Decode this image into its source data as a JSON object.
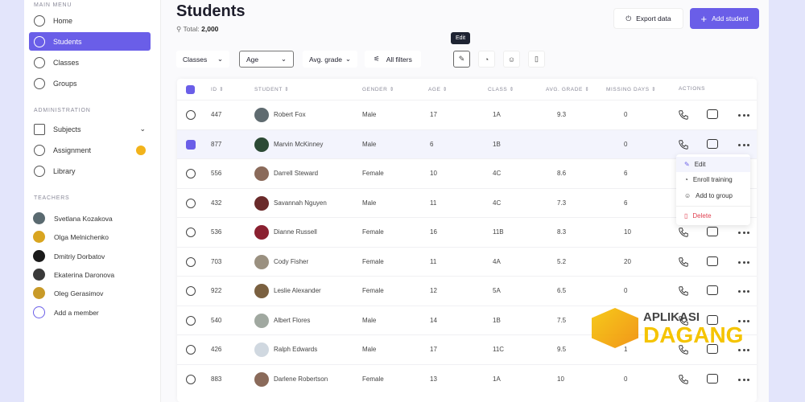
{
  "sidebar": {
    "sections": {
      "main": "MAIN MENU",
      "admin": "ADMINISTRATION",
      "teachers": "TEACHERS"
    },
    "main_items": [
      {
        "label": "Home",
        "icon": "home-icon"
      },
      {
        "label": "Students",
        "icon": "student-icon",
        "active": true
      },
      {
        "label": "Classes",
        "icon": "classes-icon"
      },
      {
        "label": "Groups",
        "icon": "groups-icon"
      }
    ],
    "admin_items": [
      {
        "label": "Subjects",
        "icon": "book-icon"
      },
      {
        "label": "Assignment",
        "icon": "assignment-icon"
      },
      {
        "label": "Library",
        "icon": "library-icon"
      }
    ],
    "teachers": [
      "Svetlana Kozakova",
      "Olga Melnichenko",
      "Dmitriy Dorbatov",
      "Ekaterina Daronova",
      "Oleg Gerasimov"
    ],
    "add_member": "Add a member"
  },
  "header": {
    "title": "Students",
    "total_label": "Total:",
    "total_value": "2,000",
    "export": "Export data",
    "add": "Add student"
  },
  "filters": {
    "classes": "Classes",
    "age": "Age",
    "avg_grade": "Avg. grade",
    "all_filters": "All filters",
    "tooltip": "Edit"
  },
  "table": {
    "headers": [
      "ID",
      "STUDENT",
      "GENDER",
      "AGE",
      "CLASS",
      "AVG. GRADE",
      "MISSING DAYS",
      "ACTIONS"
    ],
    "rows": [
      {
        "id": "447",
        "name": "Robert Fox",
        "gender": "Male",
        "age": "17",
        "class": "1A",
        "grade": "9.3",
        "missing": "0",
        "selected": false
      },
      {
        "id": "877",
        "name": "Marvin McKinney",
        "gender": "Male",
        "age": "6",
        "class": "1B",
        "grade": "",
        "missing": "0",
        "selected": true
      },
      {
        "id": "556",
        "name": "Darrell Steward",
        "gender": "Female",
        "age": "10",
        "class": "4C",
        "grade": "8.6",
        "missing": "6",
        "selected": false
      },
      {
        "id": "432",
        "name": "Savannah Nguyen",
        "gender": "Male",
        "age": "11",
        "class": "4C",
        "grade": "7.3",
        "missing": "6",
        "selected": false
      },
      {
        "id": "536",
        "name": "Dianne Russell",
        "gender": "Female",
        "age": "16",
        "class": "11B",
        "grade": "8.3",
        "missing": "10",
        "selected": false
      },
      {
        "id": "703",
        "name": "Cody Fisher",
        "gender": "Female",
        "age": "11",
        "class": "4A",
        "grade": "5.2",
        "missing": "20",
        "selected": false
      },
      {
        "id": "922",
        "name": "Leslie Alexander",
        "gender": "Female",
        "age": "12",
        "class": "5A",
        "grade": "6.5",
        "missing": "0",
        "selected": false
      },
      {
        "id": "540",
        "name": "Albert Flores",
        "gender": "Male",
        "age": "14",
        "class": "1B",
        "grade": "7.5",
        "missing": "",
        "selected": false
      },
      {
        "id": "426",
        "name": "Ralph Edwards",
        "gender": "Male",
        "age": "17",
        "class": "11C",
        "grade": "9.5",
        "missing": "1",
        "selected": false
      },
      {
        "id": "883",
        "name": "Darlene Robertson",
        "gender": "Female",
        "age": "13",
        "class": "1A",
        "grade": "10",
        "missing": "0",
        "selected": false
      }
    ]
  },
  "context_menu": {
    "edit": "Edit",
    "enroll": "Enroll training",
    "add_group": "Add to group",
    "delete": "Delete"
  },
  "colors": {
    "accent": "#6a5ee8",
    "danger": "#e04050",
    "badge": "#f2b31b"
  },
  "watermark": {
    "line1": "APLIKASI",
    "line2": "DAGANG"
  }
}
